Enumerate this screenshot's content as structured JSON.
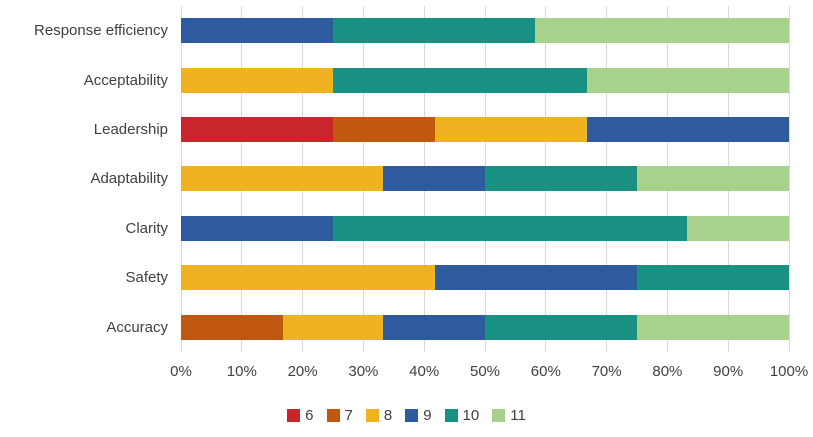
{
  "chart_data": {
    "type": "bar",
    "orientation": "horizontal",
    "stacked": true,
    "percent_stacked": true,
    "title": "",
    "xlabel": "",
    "ylabel": "",
    "xlim": [
      0,
      100
    ],
    "grid": true,
    "legend_position": "bottom",
    "categories": [
      "Response efficiency",
      "Acceptability",
      "Leadership",
      "Adaptability",
      "Clarity",
      "Safety",
      "Accuracy"
    ],
    "x_ticks": [
      "0%",
      "10%",
      "20%",
      "30%",
      "40%",
      "50%",
      "60%",
      "70%",
      "80%",
      "90%",
      "100%"
    ],
    "series": [
      {
        "name": "6",
        "color": "#C9252C",
        "values": [
          0,
          0,
          25,
          0,
          0,
          0,
          0
        ]
      },
      {
        "name": "7",
        "color": "#C1580F",
        "values": [
          0,
          0,
          16.7,
          0,
          0,
          0,
          16.7
        ]
      },
      {
        "name": "8",
        "color": "#EFB321",
        "values": [
          0,
          25,
          25,
          33.3,
          0,
          41.7,
          16.6
        ]
      },
      {
        "name": "9",
        "color": "#2E5B9E",
        "values": [
          25,
          0,
          33.3,
          16.7,
          25,
          33.3,
          16.7
        ]
      },
      {
        "name": "10",
        "color": "#189183",
        "values": [
          33.3,
          41.7,
          0,
          25,
          58.3,
          25,
          25
        ]
      },
      {
        "name": "11",
        "color": "#A9D18E",
        "values": [
          41.7,
          33.3,
          0,
          25,
          16.7,
          0,
          25
        ]
      }
    ],
    "colors": {
      "grid": "#D9D9D9",
      "text": "#404040",
      "background": "#FFFFFF"
    }
  }
}
